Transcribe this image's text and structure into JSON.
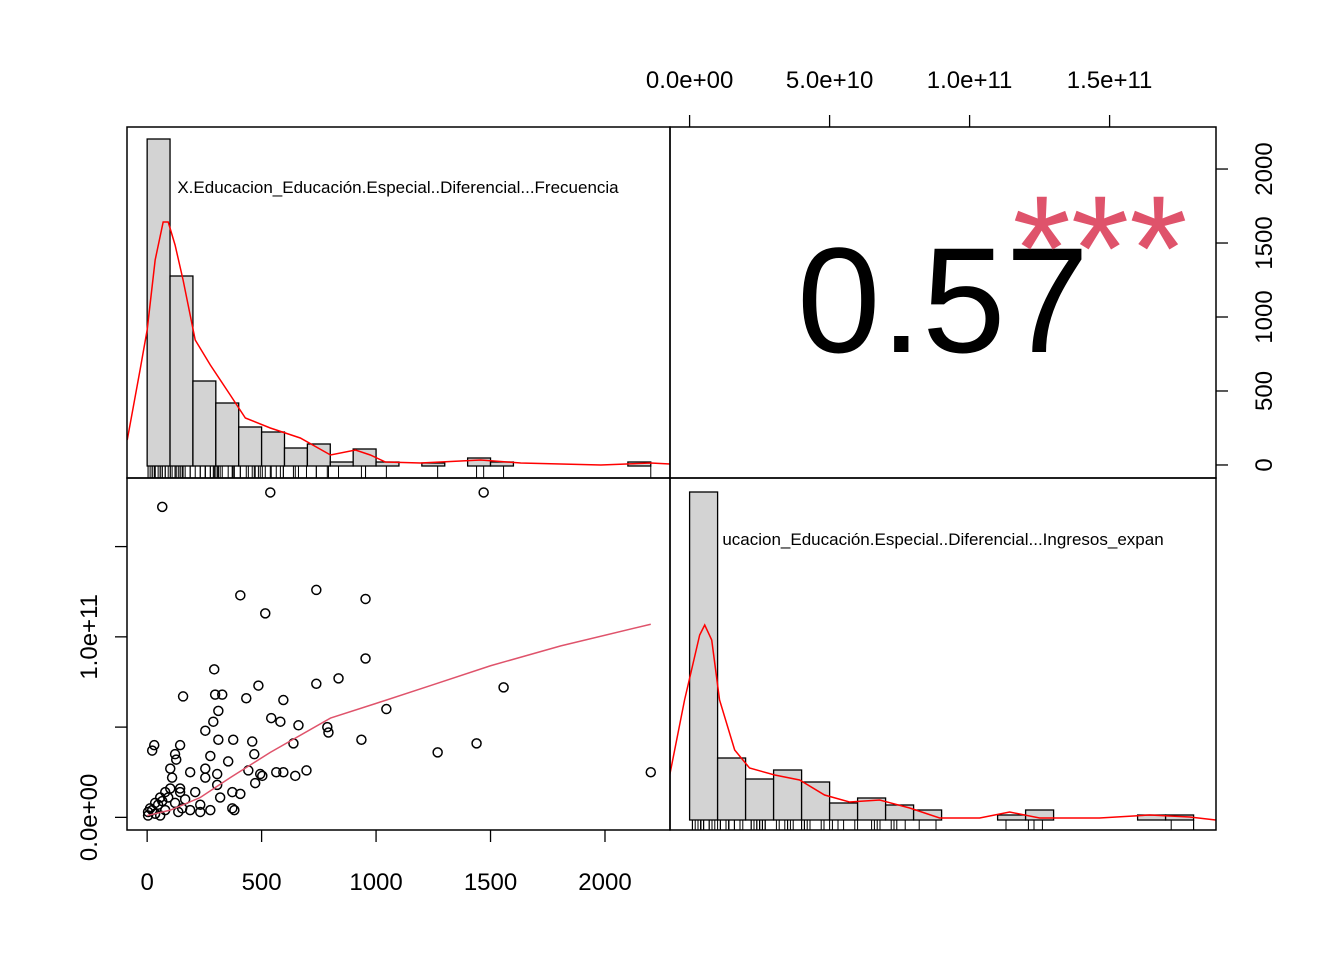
{
  "chart_data": {
    "type": "pairs",
    "variables": [
      "X.Educacion_Educación.Especial..Diferencial...Frecuencia",
      "ucacion_Educación.Especial..Diferencial...Ingresos_expan"
    ],
    "correlation": 0.57,
    "significance": "***",
    "significance_color": "#DF536B",
    "xlim": [
      -88,
      2284
    ],
    "xticks": [
      0,
      500,
      1000,
      1500,
      2000
    ],
    "ylim": [
      -7000000000.0,
      188000000000.0
    ],
    "yticks": [
      {
        "value": 0,
        "label": "0.0e+00"
      },
      {
        "value": 50000000000.0,
        "label": null
      },
      {
        "value": 100000000000.0,
        "label": "1.0e+11"
      },
      {
        "value": 150000000000.0,
        "label": null
      }
    ],
    "x2lim": [
      -7000000000.0,
      188000000000.0
    ],
    "x2ticks": [
      {
        "value": 0,
        "label": "0.0e+00"
      },
      {
        "value": 50000000000.0,
        "label": "5.0e+10"
      },
      {
        "value": 100000000000.0,
        "label": "1.0e+11"
      },
      {
        "value": 150000000000.0,
        "label": "1.5e+11"
      }
    ],
    "y2lim": [
      -88,
      2284
    ],
    "y2ticks": [
      0,
      500,
      1000,
      1500,
      2000
    ],
    "histograms": [
      {
        "bins": [
          0,
          100,
          200,
          300,
          400,
          500,
          600,
          700,
          800,
          900,
          1000,
          1100,
          1200,
          1300,
          1400,
          1500,
          1600,
          1700,
          1800,
          1900,
          2000,
          2100,
          2200
        ],
        "counts": [
          327,
          190,
          85,
          63,
          39,
          34,
          18,
          22,
          4,
          17,
          4,
          0,
          3,
          0,
          8,
          4,
          0,
          0,
          0,
          0,
          0,
          4
        ],
        "ylim": [
          -12,
          339
        ],
        "color": "#d3d3d3",
        "density_color": "#ff0000",
        "density": {
          "x": [
            -87,
            -31,
            0,
            35,
            70,
            92,
            122,
            157,
            210,
            276,
            363,
            429,
            538,
            669,
            801,
            910,
            975,
            1041,
            1194,
            1457,
            1632,
            1982,
            2200,
            2288
          ],
          "y": [
            26,
            96,
            136,
            206,
            244,
            244,
            221,
            186,
            126,
            101,
            71,
            48,
            38,
            28,
            11,
            16,
            11,
            4,
            3,
            6,
            3,
            1,
            3,
            2
          ]
        }
      },
      {
        "bins": [
          0,
          10000000000.0,
          20000000000.0,
          30000000000.0,
          40000000000.0,
          50000000000.0,
          60000000000.0,
          70000000000.0,
          80000000000.0,
          90000000000.0,
          100000000000.0,
          110000000000.0,
          120000000000.0,
          130000000000.0,
          140000000000.0,
          150000000000.0,
          160000000000.0,
          170000000000.0,
          180000000000.0
        ],
        "counts": [
          328,
          62,
          41,
          50,
          38,
          17,
          22,
          15,
          10,
          0,
          0,
          5,
          10,
          0,
          0,
          0,
          5,
          5
        ],
        "ylim": [
          -10,
          342
        ],
        "color": "#d3d3d3",
        "density_color": "#ff0000",
        "density": {
          "x": [
            -7100000000.0,
            -1800000000.0,
            3600000000.0,
            5400000000.0,
            7900000000.0,
            10700000000.0,
            16100000000.0,
            21400000000.0,
            30400000000.0,
            39300000000.0,
            48200000000.0,
            57100000000.0,
            67900000000.0,
            78600000000.0,
            89300000000.0,
            103600000000.0,
            114300000000.0,
            125000000000.0,
            146400000000.0,
            164300000000.0,
            178600000000.0,
            187900000000.0
          ],
          "y": [
            45,
            120,
            185,
            195,
            180,
            120,
            70,
            52,
            45,
            40,
            25,
            18,
            20,
            12,
            2,
            2,
            8,
            2,
            2,
            5,
            3,
            0
          ]
        }
      }
    ],
    "scatter": {
      "x": [
        66,
        538,
        1470,
        407,
        516,
        739,
        954,
        293,
        157,
        486,
        954,
        836,
        739,
        433,
        595,
        311,
        542,
        297,
        328,
        254,
        289,
        639,
        787,
        792,
        1045,
        936,
        1557,
        1439,
        1269,
        22,
        144,
        31,
        122,
        127,
        311,
        376,
        459,
        468,
        354,
        582,
        661,
        696,
        564,
        494,
        503,
        647,
        595,
        472,
        407,
        372,
        372,
        381,
        306,
        306,
        254,
        276,
        188,
        101,
        109,
        144,
        210,
        79,
        57,
        35,
        13,
        4,
        4,
        22,
        48,
        66,
        92,
        122,
        153,
        188,
        232,
        276,
        166,
        136,
        35,
        57,
        79,
        2200,
        101,
        144,
        232,
        319,
        254,
        442
      ],
      "y": [
        172000000000.0,
        180000000000.0,
        180000000000.0,
        123000000000.0,
        113000000000.0,
        126000000000.0,
        121000000000.0,
        82000000000.0,
        67000000000.0,
        73000000000.0,
        88000000000.0,
        77000000000.0,
        74000000000.0,
        66000000000.0,
        65000000000.0,
        59000000000.0,
        55000000000.0,
        68000000000.0,
        68000000000.0,
        48000000000.0,
        53000000000.0,
        41000000000.0,
        50000000000.0,
        47000000000.0,
        60000000000.0,
        43000000000.0,
        72000000000.0,
        41000000000.0,
        36000000000.0,
        37000000000.0,
        40000000000.0,
        40000000000.0,
        35000000000.0,
        32000000000.0,
        43000000000.0,
        43000000000.0,
        42000000000.0,
        35000000000.0,
        31000000000.0,
        53000000000.0,
        51000000000.0,
        26000000000.0,
        25000000000.0,
        24000000000.0,
        23000000000.0,
        23000000000.0,
        25000000000.0,
        19000000000.0,
        13000000000.0,
        14000000000.0,
        5000000000.0,
        4000000000.0,
        18000000000.0,
        24000000000.0,
        22000000000.0,
        34000000000.0,
        25000000000.0,
        27000000000.0,
        22000000000.0,
        16000000000.0,
        14000000000.0,
        14000000000.0,
        11000000000.0,
        8000000000.0,
        5000000000.0,
        3000000000.0,
        1000000000.0,
        4000000000.0,
        7000000000.0,
        9000000000.0,
        11000000000.0,
        8000000000.0,
        5000000000.0,
        4000000000.0,
        3000000000.0,
        4000000000.0,
        10000000000.0,
        3000000000.0,
        2000000000.0,
        1000000000.0,
        4000000000.0,
        25000000000.0,
        16000000000.0,
        14000000000.0,
        7000000000.0,
        11000000000.0,
        27000000000.0,
        26000000000.0
      ],
      "smooth": {
        "x": [
          0,
          101,
          232,
          363,
          538,
          801,
          997,
          1238,
          1500,
          1807,
          2200
        ],
        "y": [
          1000000000.0,
          4000000000.0,
          11000000000.0,
          22000000000.0,
          36000000000.0,
          55000000000.0,
          63000000000.0,
          73000000000.0,
          84000000000.0,
          95000000000.0,
          107000000000.0
        ],
        "color": "#DF536B"
      }
    }
  }
}
